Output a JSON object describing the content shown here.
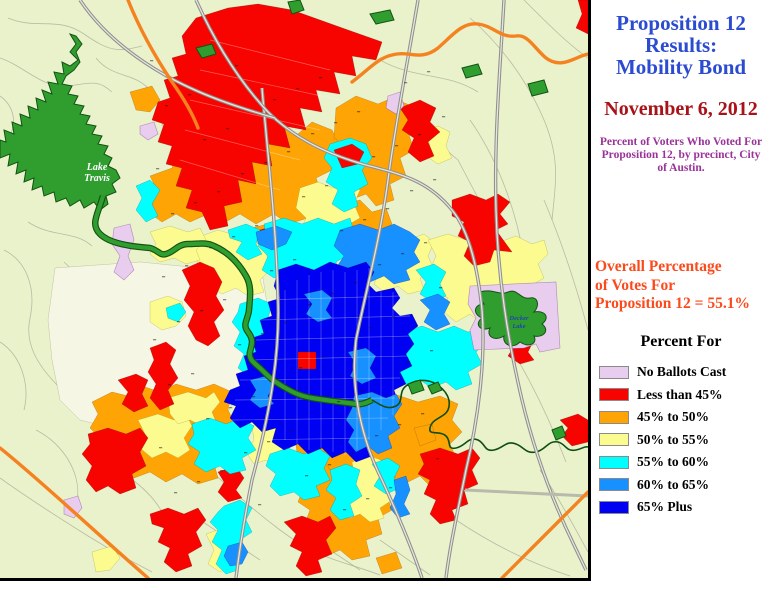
{
  "side_panel": {
    "title_lines": [
      "Proposition 12",
      "Results:",
      "Mobility Bond"
    ],
    "date": "November 6, 2012",
    "subtitle": "Percent of Voters Who Voted For Proposition 12, by precinct, City of Austin.",
    "overall_lines": [
      "Overall Percentage",
      "of Votes For",
      "Proposition 12 = 55.1%"
    ],
    "colors": {
      "title": "#2B4BD0",
      "date": "#A81218",
      "subtitle": "#993399",
      "overall": "#FB4A1C"
    }
  },
  "legend": {
    "title": "Percent For",
    "items": [
      {
        "label": "No Ballots Cast",
        "color": "#E8CDEF"
      },
      {
        "label": "Less than 45%",
        "color": "#F80400"
      },
      {
        "label": "45% to 50%",
        "color": "#FFA405"
      },
      {
        "label": "50% to 55%",
        "color": "#FBFB8F"
      },
      {
        "label": "55% to 60%",
        "color": "#00FFFF"
      },
      {
        "label": "60% to 65%",
        "color": "#1791FF"
      },
      {
        "label": "65% Plus",
        "color": "#0000F2"
      }
    ]
  },
  "map": {
    "labels": {
      "lake_travis": {
        "lines": [
          "Lake",
          "Travis"
        ]
      },
      "decker_lake": {
        "lines": [
          "Decker",
          "Lake"
        ]
      }
    },
    "palette": {
      "background": "#E9F2CB",
      "cream": "#F6F6E4",
      "water_green": "#2F9E2F",
      "water_border": "#145214",
      "road_minor": "#A9A896",
      "highway_gray": "#8F8F8F",
      "highway_core": "#E6E6DA",
      "road_orange": "#F58220",
      "border": "#000000"
    }
  }
}
